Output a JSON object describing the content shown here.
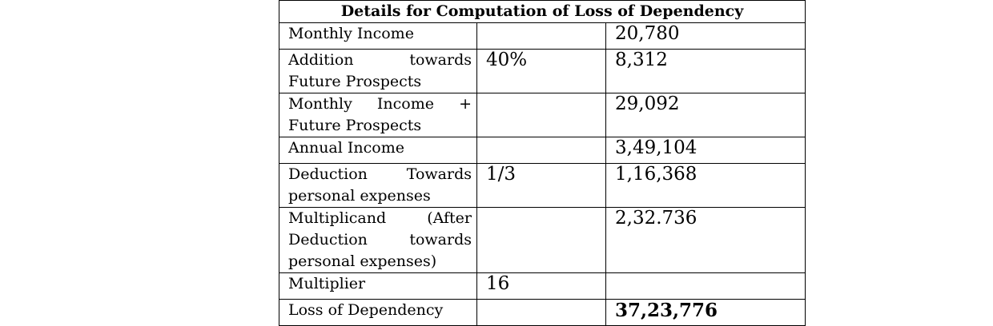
{
  "table": {
    "title": "Details for Computation of Loss of Dependency",
    "rows": [
      {
        "label": "Monthly Income",
        "rate": "",
        "amount": "20,780"
      },
      {
        "label": "Addition towards Future Prospects",
        "rate": "40%",
        "amount": "8,312"
      },
      {
        "label": "Monthly Income + Future Prospects",
        "rate": "",
        "amount": "29,092"
      },
      {
        "label": "Annual Income",
        "rate": "",
        "amount": "3,49,104"
      },
      {
        "label": "Deduction Towards personal expenses",
        "rate": "1/3",
        "amount": "1,16,368"
      },
      {
        "label": "Multiplicand (After Deduction towards personal expenses)",
        "rate": "",
        "amount": "2,32.736"
      },
      {
        "label": "Multiplier",
        "rate": "16",
        "amount": ""
      },
      {
        "label": "Loss of Dependency",
        "rate": "",
        "amount": "37,23,776"
      }
    ]
  }
}
